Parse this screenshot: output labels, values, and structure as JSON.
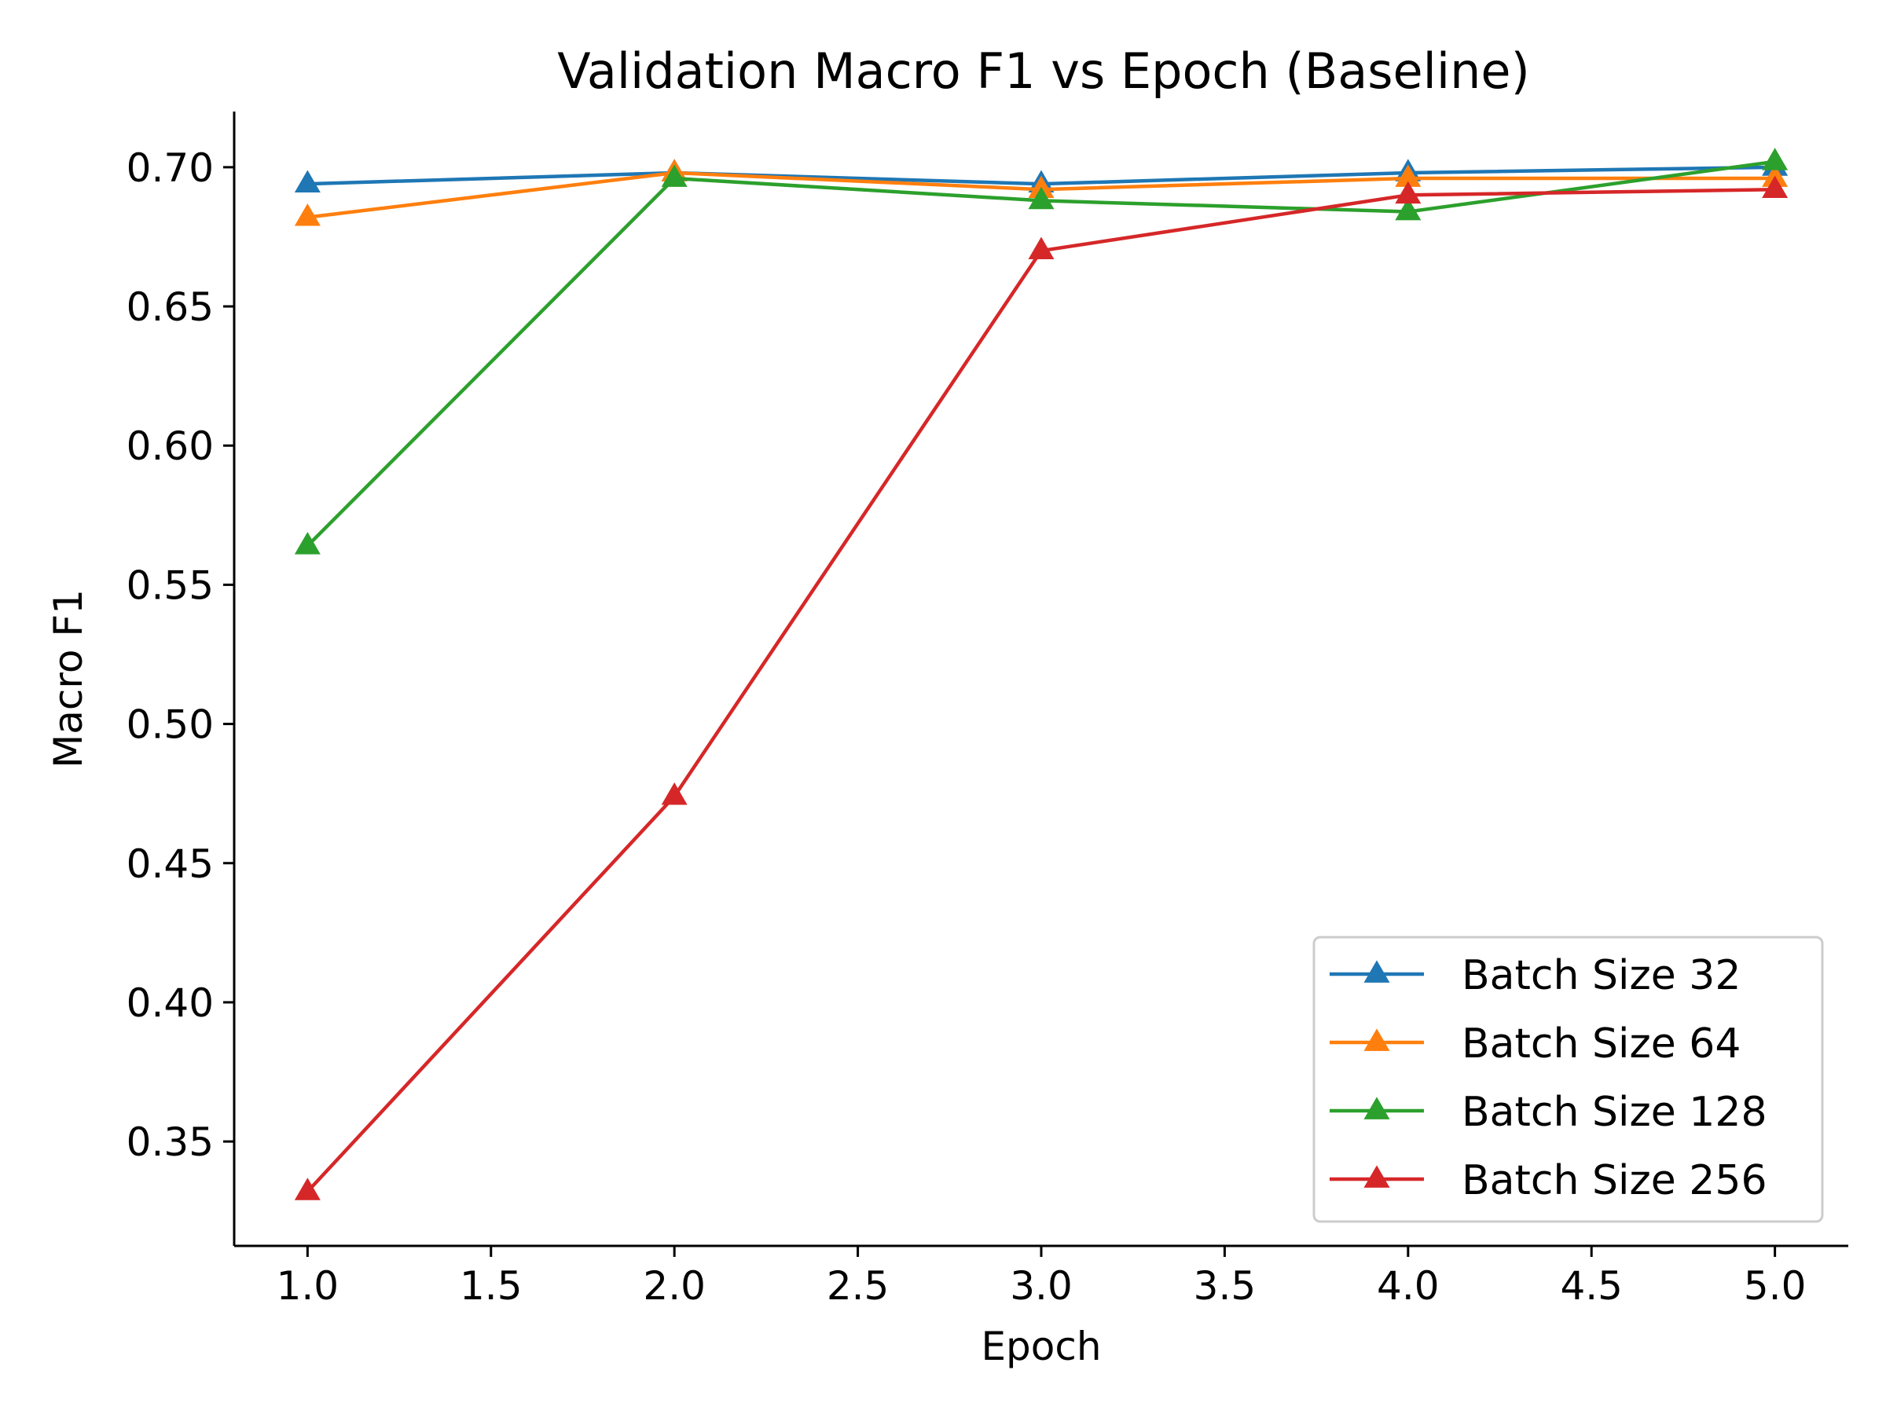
{
  "chart_data": {
    "type": "line",
    "title": "Validation Macro F1 vs Epoch (Baseline)",
    "xlabel": "Epoch",
    "ylabel": "Macro F1",
    "x": [
      1.0,
      2.0,
      3.0,
      4.0,
      5.0
    ],
    "xlim": [
      0.8,
      5.2
    ],
    "ylim": [
      0.3125,
      0.72
    ],
    "xticks": [
      "1.0",
      "1.5",
      "2.0",
      "2.5",
      "3.0",
      "3.5",
      "4.0",
      "4.5",
      "5.0"
    ],
    "yticks": [
      "0.35",
      "0.40",
      "0.45",
      "0.50",
      "0.55",
      "0.60",
      "0.65",
      "0.70"
    ],
    "grid": false,
    "legend_position": "bottom-right",
    "marker": "triangle",
    "series": [
      {
        "name": "Batch Size 32",
        "color": "#1f77b4",
        "values": [
          0.694,
          0.698,
          0.694,
          0.698,
          0.7
        ]
      },
      {
        "name": "Batch Size 64",
        "color": "#ff7f0e",
        "values": [
          0.682,
          0.698,
          0.692,
          0.696,
          0.696
        ]
      },
      {
        "name": "Batch Size 128",
        "color": "#2ca02c",
        "values": [
          0.564,
          0.696,
          0.688,
          0.684,
          0.702
        ]
      },
      {
        "name": "Batch Size 256",
        "color": "#d62728",
        "values": [
          0.332,
          0.474,
          0.67,
          0.69,
          0.692
        ]
      }
    ]
  }
}
